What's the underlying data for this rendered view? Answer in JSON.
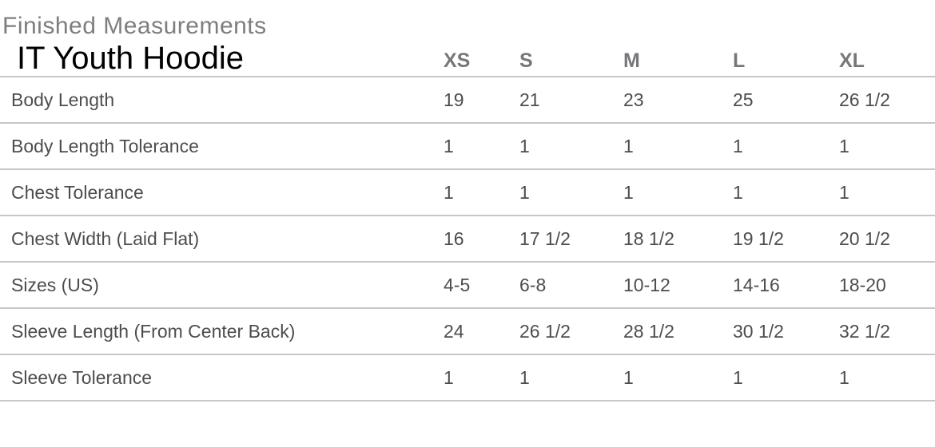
{
  "header": {
    "section_title": "Finished Measurements",
    "product_title": "IT Youth Hoodie"
  },
  "table": {
    "size_columns": [
      "XS",
      "S",
      "M",
      "L",
      "XL"
    ],
    "rows": [
      {
        "label": "Body Length",
        "values": [
          "19",
          "21",
          "23",
          "25",
          "26 1/2"
        ]
      },
      {
        "label": "Body Length Tolerance",
        "values": [
          "1",
          "1",
          "1",
          "1",
          "1"
        ]
      },
      {
        "label": "Chest Tolerance",
        "values": [
          "1",
          "1",
          "1",
          "1",
          "1"
        ]
      },
      {
        "label": "Chest Width (Laid Flat)",
        "values": [
          "16",
          "17 1/2",
          "18 1/2",
          "19 1/2",
          "20 1/2"
        ]
      },
      {
        "label": "Sizes (US)",
        "values": [
          "4-5",
          "6-8",
          "10-12",
          "14-16",
          "18-20"
        ]
      },
      {
        "label": "Sleeve Length (From Center Back)",
        "values": [
          "24",
          "26 1/2",
          "28 1/2",
          "30 1/2",
          "32 1/2"
        ]
      },
      {
        "label": "Sleeve Tolerance",
        "values": [
          "1",
          "1",
          "1",
          "1",
          "1"
        ]
      }
    ]
  },
  "colors": {
    "background": "#ffffff",
    "section_title": "#7d7e80",
    "product_title_text": "#000000",
    "size_header_text": "#76777a",
    "row_text": "#4c4d4f",
    "divider": "#c7c7c7"
  }
}
